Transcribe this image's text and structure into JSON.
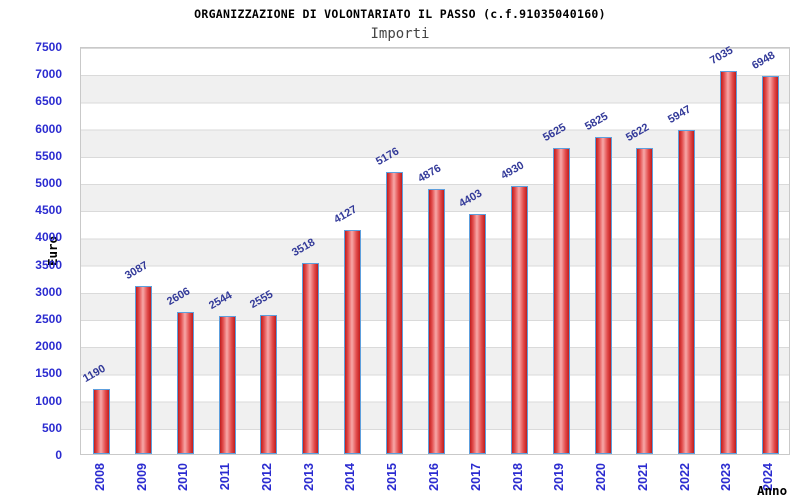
{
  "chart_data": {
    "type": "bar",
    "title": "ORGANIZZAZIONE DI VOLONTARIATO IL PASSO (c.f.91035040160)",
    "subtitle": "Importi",
    "xlabel": "Anno",
    "ylabel": "Euro",
    "categories": [
      "2008",
      "2009",
      "2010",
      "2011",
      "2012",
      "2013",
      "2014",
      "2015",
      "2016",
      "2017",
      "2018",
      "2019",
      "2020",
      "2021",
      "2022",
      "2023",
      "2024"
    ],
    "values": [
      1190,
      3087,
      2606,
      2544,
      2555,
      3518,
      4127,
      5176,
      4876,
      4403,
      4930,
      5625,
      5825,
      5622,
      5947,
      7035,
      6948
    ],
    "ylim": [
      0,
      7500
    ],
    "ytick_step": 500,
    "grid": "horizontal-bands-alternating",
    "legend": "none",
    "bar_value_labels_rotation_deg": -30,
    "x_labels_rotation_deg": -90,
    "colors": {
      "bar_fill_dark": "#c01d1d",
      "bar_fill_mid": "#e24b4b",
      "bar_fill_light": "#f7a8a8",
      "bar_edge": "#5d9fdd",
      "tick_label": "#2b2bd0",
      "value_label": "#333a99",
      "band_gray": "#f0f0f0",
      "grid_line": "#dadada",
      "plot_border": "#c9c9c9",
      "title": "#000000",
      "subtitle": "#444444",
      "axis_title": "#000000",
      "background": "#ffffff"
    }
  }
}
